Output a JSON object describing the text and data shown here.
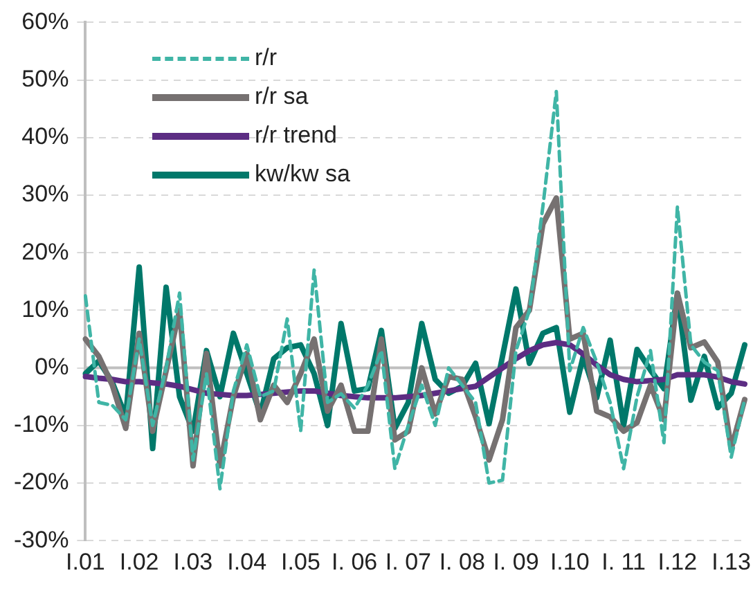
{
  "chart_data": {
    "type": "line",
    "categories": [
      "I.01",
      null,
      null,
      null,
      "I.02",
      null,
      null,
      null,
      "I.03",
      null,
      null,
      null,
      "I.04",
      null,
      null,
      null,
      "I.05",
      null,
      null,
      null,
      "I. 06",
      null,
      null,
      null,
      "I. 07",
      null,
      null,
      null,
      "I. 08",
      null,
      null,
      null,
      "I. 09",
      null,
      null,
      null,
      "I.10",
      null,
      null,
      null,
      "I. 11",
      null,
      null,
      null,
      "I.12",
      null,
      null,
      null,
      "I.13",
      null
    ],
    "series": [
      {
        "name": "r/r",
        "color": "#40b5a6",
        "line_style": "dashed",
        "values": [
          12.5,
          -6,
          -6.5,
          -9,
          5,
          -10,
          0,
          13,
          -16,
          -1,
          -21,
          -4,
          4,
          -5,
          -4,
          8.5,
          -11,
          17,
          -6,
          -4.5,
          -7,
          -3,
          3,
          -17.5,
          -10,
          -3,
          -10,
          0,
          -3,
          -6,
          -20,
          -19.5,
          3,
          10,
          28,
          48,
          -0.5,
          7,
          1,
          -6,
          -17.5,
          -5,
          3,
          -13,
          28,
          4,
          1,
          -0.5,
          -15.5,
          -5.5
        ]
      },
      {
        "name": "r/r sa",
        "color": "#767171",
        "line_style": "solid",
        "values": [
          5,
          2,
          -3,
          -10.5,
          6,
          -11,
          -0.5,
          10,
          -17,
          2.5,
          -17,
          -5,
          2.5,
          -9,
          -3,
          -6,
          -1,
          5,
          -7.5,
          -3,
          -11,
          -11,
          5,
          -12.5,
          -11,
          0,
          -8,
          -1.5,
          -2,
          -8.5,
          -16,
          -9,
          7,
          10,
          25,
          29.5,
          5,
          6,
          -7.5,
          -8.5,
          -11,
          -9.5,
          -3,
          -9,
          13,
          3.5,
          4.5,
          1,
          -14,
          -5.5
        ]
      },
      {
        "name": "r/r trend",
        "color": "#5c2d83",
        "line_style": "solid",
        "values": [
          -1.5,
          -1.8,
          -2,
          -2.4,
          -2.4,
          -2.6,
          -2.8,
          -3.2,
          -3.8,
          -4.4,
          -4.6,
          -4.8,
          -4.8,
          -4.6,
          -4.4,
          -4.2,
          -4,
          -4,
          -4.4,
          -4.8,
          -5,
          -5.2,
          -5.2,
          -5.2,
          -5,
          -4.8,
          -4.4,
          -4,
          -3.6,
          -3.2,
          -1.6,
          0,
          1.6,
          3,
          4,
          4.4,
          4,
          2.4,
          0.5,
          -1.2,
          -2,
          -2.4,
          -2.2,
          -2,
          -1.2,
          -1.2,
          -1.2,
          -1.6,
          -2.4,
          -2.8
        ]
      },
      {
        "name": "kw/kw sa",
        "color": "#00786a",
        "line_style": "solid",
        "values": [
          -1,
          1.2,
          -2.5,
          -8.5,
          17.5,
          -14,
          14,
          -5,
          -11,
          3,
          -5,
          6,
          -1,
          -8,
          1.6,
          3.5,
          4,
          -1,
          -10,
          7.7,
          -4,
          -3.6,
          6.5,
          -10.5,
          -6,
          7.7,
          -2,
          -4.4,
          -3.2,
          0.8,
          -9.7,
          2,
          13.7,
          0.8,
          6,
          7,
          -7.7,
          2,
          -5.2,
          4.8,
          -10,
          3.2,
          -0.4,
          -3.6,
          12.9,
          -5.6,
          2,
          -6.9,
          -4.4,
          4
        ]
      }
    ],
    "ylim": [
      -30,
      60
    ],
    "yticks": [
      {
        "value": -30,
        "label": "-30%"
      },
      {
        "value": -20,
        "label": "-20%"
      },
      {
        "value": -10,
        "label": "-10%"
      },
      {
        "value": 0,
        "label": "0%"
      },
      {
        "value": 10,
        "label": "10%"
      },
      {
        "value": 20,
        "label": "20%"
      },
      {
        "value": 30,
        "label": "30%"
      },
      {
        "value": 40,
        "label": "40%"
      },
      {
        "value": 50,
        "label": "50%"
      },
      {
        "value": 60,
        "label": "60%"
      }
    ],
    "grid": "y",
    "legend": "top left",
    "marker": "none"
  }
}
